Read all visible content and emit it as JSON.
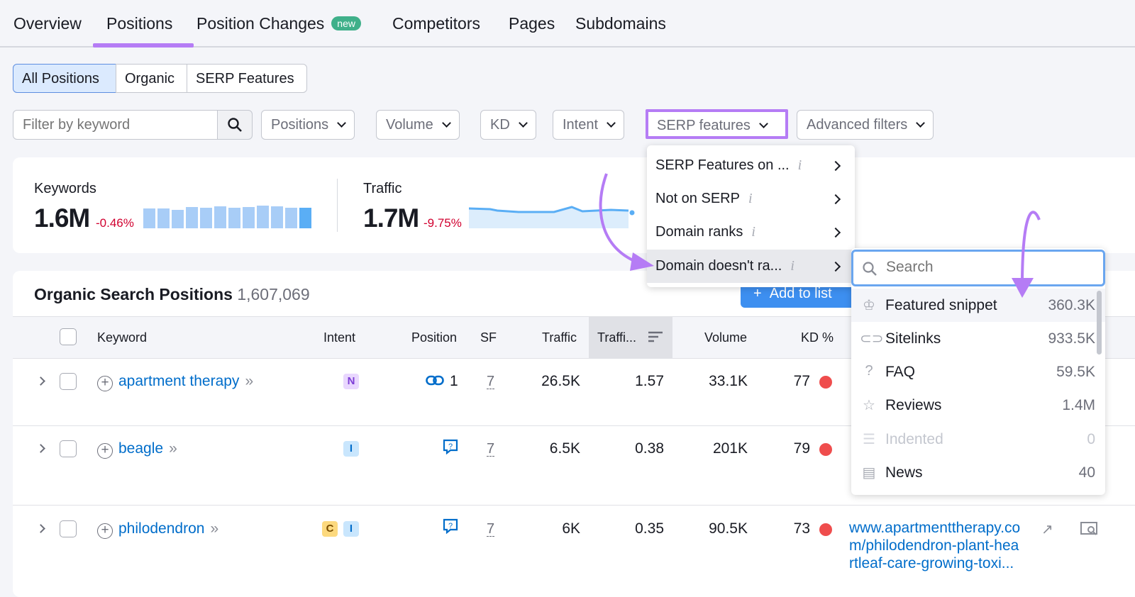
{
  "tabs": [
    {
      "label": "Overview"
    },
    {
      "label": "Positions"
    },
    {
      "label": "Position Changes",
      "badge": "new"
    },
    {
      "label": "Competitors"
    },
    {
      "label": "Pages"
    },
    {
      "label": "Subdomains"
    }
  ],
  "segments": [
    "All Positions",
    "Organic",
    "SERP Features"
  ],
  "filters": {
    "keyword_placeholder": "Filter by keyword",
    "positions": "Positions",
    "volume": "Volume",
    "kd": "KD",
    "intent": "Intent",
    "serp": "SERP features",
    "advanced": "Advanced filters"
  },
  "kpi": {
    "keywords_label": "Keywords",
    "keywords_value": "1.6M",
    "keywords_delta": "-0.46%",
    "traffic_label": "Traffic",
    "traffic_value": "1.7M",
    "traffic_delta": "-9.75%"
  },
  "table": {
    "title": "Organic Search Positions",
    "count": "1,607,069",
    "add_to_list": "Add to list",
    "headers": [
      "Keyword",
      "Intent",
      "Position",
      "SF",
      "Traffic",
      "Traffi...",
      "Volume",
      "KD %"
    ],
    "rows": [
      {
        "keyword": "apartment therapy",
        "intent": [
          "N"
        ],
        "position": "1",
        "sf": "7",
        "traffic": "26.5K",
        "traffic_pct": "1.57",
        "volume": "33.1K",
        "kd": "77"
      },
      {
        "keyword": "beagle",
        "intent": [
          "I"
        ],
        "position": "",
        "sf": "7",
        "traffic": "6.5K",
        "traffic_pct": "0.38",
        "volume": "201K",
        "kd": "79"
      },
      {
        "keyword": "philodendron",
        "intent": [
          "C",
          "I"
        ],
        "position": "",
        "sf": "7",
        "traffic": "6K",
        "traffic_pct": "0.35",
        "volume": "90.5K",
        "kd": "73",
        "url": [
          "www.apartmenttherapy.co",
          "m/philodendron-plant-hea",
          "rtleaf-care-growing-toxi..."
        ]
      }
    ]
  },
  "serp_menu": [
    "SERP Features on ...",
    "Not on SERP",
    "Domain ranks",
    "Domain doesn't ra..."
  ],
  "submenu": {
    "search_placeholder": "Search",
    "items": [
      {
        "label": "Featured snippet",
        "count": "360.3K",
        "icon": "crown-icon"
      },
      {
        "label": "Sitelinks",
        "count": "933.5K",
        "icon": "link-icon"
      },
      {
        "label": "FAQ",
        "count": "59.5K",
        "icon": "question-icon"
      },
      {
        "label": "Reviews",
        "count": "1.4M",
        "icon": "star-icon"
      },
      {
        "label": "Indented",
        "count": "0",
        "icon": "indented-icon",
        "disabled": true
      },
      {
        "label": "News",
        "count": "40",
        "icon": "news-icon"
      }
    ]
  },
  "colors": {
    "accent": "#b57cf5",
    "link": "#006dca",
    "primary": "#3d8ff0",
    "negative": "#d1002f"
  }
}
